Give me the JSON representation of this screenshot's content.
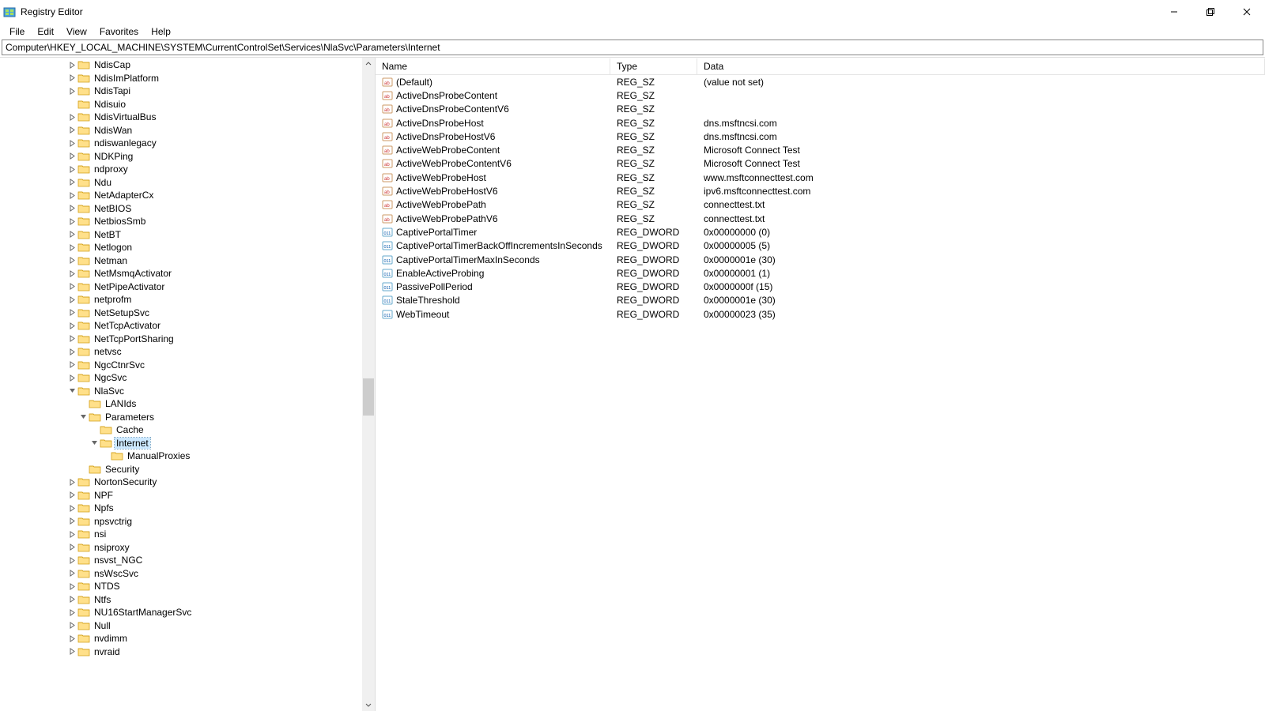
{
  "window": {
    "title": "Registry Editor"
  },
  "menubar": [
    "File",
    "Edit",
    "View",
    "Favorites",
    "Help"
  ],
  "address": "Computer\\HKEY_LOCAL_MACHINE\\SYSTEM\\CurrentControlSet\\Services\\NlaSvc\\Parameters\\Internet",
  "tree": [
    {
      "indent": 6,
      "exp": ">",
      "label": "NdisCap"
    },
    {
      "indent": 6,
      "exp": ">",
      "label": "NdisImPlatform"
    },
    {
      "indent": 6,
      "exp": ">",
      "label": "NdisTapi"
    },
    {
      "indent": 6,
      "exp": "",
      "label": "Ndisuio"
    },
    {
      "indent": 6,
      "exp": ">",
      "label": "NdisVirtualBus"
    },
    {
      "indent": 6,
      "exp": ">",
      "label": "NdisWan"
    },
    {
      "indent": 6,
      "exp": ">",
      "label": "ndiswanlegacy"
    },
    {
      "indent": 6,
      "exp": ">",
      "label": "NDKPing"
    },
    {
      "indent": 6,
      "exp": ">",
      "label": "ndproxy"
    },
    {
      "indent": 6,
      "exp": ">",
      "label": "Ndu"
    },
    {
      "indent": 6,
      "exp": ">",
      "label": "NetAdapterCx"
    },
    {
      "indent": 6,
      "exp": ">",
      "label": "NetBIOS"
    },
    {
      "indent": 6,
      "exp": ">",
      "label": "NetbiosSmb"
    },
    {
      "indent": 6,
      "exp": ">",
      "label": "NetBT"
    },
    {
      "indent": 6,
      "exp": ">",
      "label": "Netlogon"
    },
    {
      "indent": 6,
      "exp": ">",
      "label": "Netman"
    },
    {
      "indent": 6,
      "exp": ">",
      "label": "NetMsmqActivator"
    },
    {
      "indent": 6,
      "exp": ">",
      "label": "NetPipeActivator"
    },
    {
      "indent": 6,
      "exp": ">",
      "label": "netprofm"
    },
    {
      "indent": 6,
      "exp": ">",
      "label": "NetSetupSvc"
    },
    {
      "indent": 6,
      "exp": ">",
      "label": "NetTcpActivator"
    },
    {
      "indent": 6,
      "exp": ">",
      "label": "NetTcpPortSharing"
    },
    {
      "indent": 6,
      "exp": ">",
      "label": "netvsc"
    },
    {
      "indent": 6,
      "exp": ">",
      "label": "NgcCtnrSvc"
    },
    {
      "indent": 6,
      "exp": ">",
      "label": "NgcSvc"
    },
    {
      "indent": 6,
      "exp": "v",
      "label": "NlaSvc"
    },
    {
      "indent": 7,
      "exp": "",
      "label": "LANIds"
    },
    {
      "indent": 7,
      "exp": "v",
      "label": "Parameters"
    },
    {
      "indent": 8,
      "exp": "",
      "label": "Cache"
    },
    {
      "indent": 8,
      "exp": "v",
      "label": "Internet",
      "selected": true
    },
    {
      "indent": 9,
      "exp": "",
      "label": "ManualProxies"
    },
    {
      "indent": 7,
      "exp": "",
      "label": "Security"
    },
    {
      "indent": 6,
      "exp": ">",
      "label": "NortonSecurity"
    },
    {
      "indent": 6,
      "exp": ">",
      "label": "NPF"
    },
    {
      "indent": 6,
      "exp": ">",
      "label": "Npfs"
    },
    {
      "indent": 6,
      "exp": ">",
      "label": "npsvctrig"
    },
    {
      "indent": 6,
      "exp": ">",
      "label": "nsi"
    },
    {
      "indent": 6,
      "exp": ">",
      "label": "nsiproxy"
    },
    {
      "indent": 6,
      "exp": ">",
      "label": "nsvst_NGC"
    },
    {
      "indent": 6,
      "exp": ">",
      "label": "nsWscSvc"
    },
    {
      "indent": 6,
      "exp": ">",
      "label": "NTDS"
    },
    {
      "indent": 6,
      "exp": ">",
      "label": "Ntfs"
    },
    {
      "indent": 6,
      "exp": ">",
      "label": "NU16StartManagerSvc"
    },
    {
      "indent": 6,
      "exp": ">",
      "label": "Null"
    },
    {
      "indent": 6,
      "exp": ">",
      "label": "nvdimm"
    },
    {
      "indent": 6,
      "exp": ">",
      "label": "nvraid"
    }
  ],
  "scrollbar": {
    "thumb_top_pct": 49,
    "thumb_height_pct": 6
  },
  "columns": {
    "name": "Name",
    "type": "Type",
    "data": "Data"
  },
  "values": [
    {
      "icon": "sz",
      "name": "(Default)",
      "type": "REG_SZ",
      "data": "(value not set)"
    },
    {
      "icon": "sz",
      "name": "ActiveDnsProbeContent",
      "type": "REG_SZ",
      "data": ""
    },
    {
      "icon": "sz",
      "name": "ActiveDnsProbeContentV6",
      "type": "REG_SZ",
      "data": ""
    },
    {
      "icon": "sz",
      "name": "ActiveDnsProbeHost",
      "type": "REG_SZ",
      "data": "dns.msftncsi.com"
    },
    {
      "icon": "sz",
      "name": "ActiveDnsProbeHostV6",
      "type": "REG_SZ",
      "data": "dns.msftncsi.com"
    },
    {
      "icon": "sz",
      "name": "ActiveWebProbeContent",
      "type": "REG_SZ",
      "data": "Microsoft Connect Test"
    },
    {
      "icon": "sz",
      "name": "ActiveWebProbeContentV6",
      "type": "REG_SZ",
      "data": "Microsoft Connect Test"
    },
    {
      "icon": "sz",
      "name": "ActiveWebProbeHost",
      "type": "REG_SZ",
      "data": "www.msftconnecttest.com"
    },
    {
      "icon": "sz",
      "name": "ActiveWebProbeHostV6",
      "type": "REG_SZ",
      "data": "ipv6.msftconnecttest.com"
    },
    {
      "icon": "sz",
      "name": "ActiveWebProbePath",
      "type": "REG_SZ",
      "data": "connecttest.txt"
    },
    {
      "icon": "sz",
      "name": "ActiveWebProbePathV6",
      "type": "REG_SZ",
      "data": "connecttest.txt"
    },
    {
      "icon": "dw",
      "name": "CaptivePortalTimer",
      "type": "REG_DWORD",
      "data": "0x00000000 (0)"
    },
    {
      "icon": "dw",
      "name": "CaptivePortalTimerBackOffIncrementsInSeconds",
      "type": "REG_DWORD",
      "data": "0x00000005 (5)"
    },
    {
      "icon": "dw",
      "name": "CaptivePortalTimerMaxInSeconds",
      "type": "REG_DWORD",
      "data": "0x0000001e (30)"
    },
    {
      "icon": "dw",
      "name": "EnableActiveProbing",
      "type": "REG_DWORD",
      "data": "0x00000001 (1)"
    },
    {
      "icon": "dw",
      "name": "PassivePollPeriod",
      "type": "REG_DWORD",
      "data": "0x0000000f (15)"
    },
    {
      "icon": "dw",
      "name": "StaleThreshold",
      "type": "REG_DWORD",
      "data": "0x0000001e (30)"
    },
    {
      "icon": "dw",
      "name": "WebTimeout",
      "type": "REG_DWORD",
      "data": "0x00000023 (35)"
    }
  ]
}
